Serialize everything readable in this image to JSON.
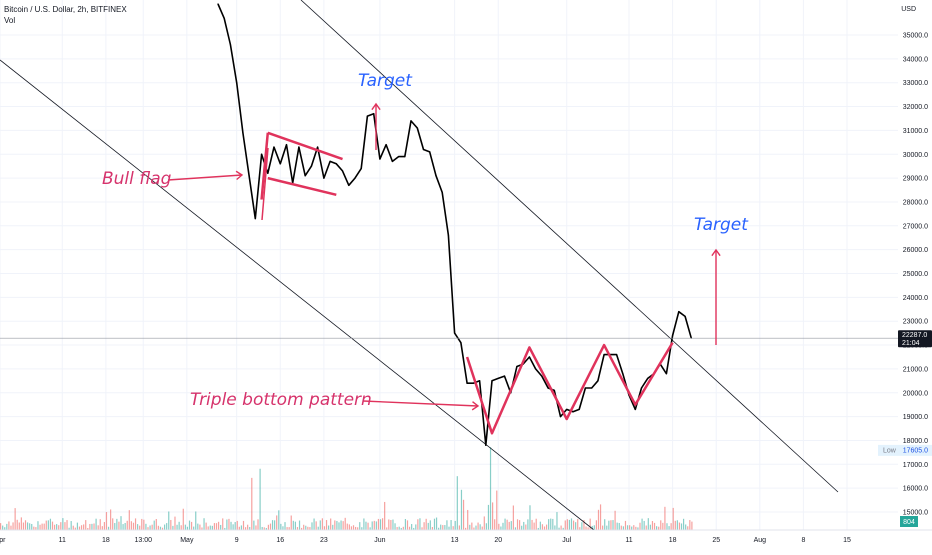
{
  "header": {
    "symbol_line": "Bitcoin / U.S. Dollar, 2h, BITFINEX",
    "vol_label": "Vol"
  },
  "colors": {
    "price_line": "#000000",
    "pattern": "#e0335c",
    "arrow": "#e0335c",
    "target_text": "#2962ff",
    "label_text": "#d6336c",
    "grid": "#f0f3fa",
    "vol_up": "#26a69a",
    "vol_down": "#ef5350",
    "price_tag_bg": "#131722"
  },
  "chart_data": {
    "type": "line",
    "y_axis": {
      "unit": "USD",
      "ticks": [
        "35000.0",
        "34000.0",
        "33000.0",
        "32000.0",
        "31000.0",
        "30000.0",
        "29000.0",
        "28000.0",
        "27000.0",
        "26000.0",
        "25000.0",
        "24000.0",
        "23000.0",
        "22000.0",
        "21000.0",
        "20000.0",
        "19000.0",
        "18000.0",
        "17000.0",
        "16000.0",
        "15000.0"
      ],
      "ylim": [
        14600,
        36300
      ]
    },
    "x_axis": {
      "ticks": [
        {
          "label": "Apr",
          "date": "2022-04-01"
        },
        {
          "label": "11",
          "date": "2022-04-11"
        },
        {
          "label": "18",
          "date": "2022-04-18"
        },
        {
          "label": "13:00",
          "date": "2022-04-24"
        },
        {
          "label": "May",
          "date": "2022-05-01"
        },
        {
          "label": "9",
          "date": "2022-05-09"
        },
        {
          "label": "16",
          "date": "2022-05-16"
        },
        {
          "label": "23",
          "date": "2022-05-23"
        },
        {
          "label": "Jun",
          "date": "2022-06-01"
        },
        {
          "label": "13",
          "date": "2022-06-13"
        },
        {
          "label": "20",
          "date": "2022-06-20"
        },
        {
          "label": "Jul",
          "date": "2022-07-01"
        },
        {
          "label": "11",
          "date": "2022-07-11"
        },
        {
          "label": "18",
          "date": "2022-07-18"
        },
        {
          "label": "25",
          "date": "2022-07-25"
        },
        {
          "label": "Aug",
          "date": "2022-08-01"
        },
        {
          "label": "8",
          "date": "2022-08-08"
        },
        {
          "label": "15",
          "date": "2022-08-15"
        }
      ]
    },
    "series": [
      {
        "points": [
          [
            "2022-05-06",
            36300
          ],
          [
            "2022-05-07",
            35700
          ],
          [
            "2022-05-08",
            34600
          ],
          [
            "2022-05-09",
            33000
          ],
          [
            "2022-05-10",
            30900
          ],
          [
            "2022-05-11",
            29100
          ],
          [
            "2022-05-12",
            27300
          ],
          [
            "2022-05-13",
            30000
          ],
          [
            "2022-05-14",
            29200
          ],
          [
            "2022-05-15",
            30300
          ],
          [
            "2022-05-16",
            29600
          ],
          [
            "2022-05-17",
            30400
          ],
          [
            "2022-05-18",
            28800
          ],
          [
            "2022-05-19",
            30300
          ],
          [
            "2022-05-20",
            29100
          ],
          [
            "2022-05-21",
            29500
          ],
          [
            "2022-05-22",
            30300
          ],
          [
            "2022-05-23",
            29000
          ],
          [
            "2022-05-24",
            29700
          ],
          [
            "2022-05-25",
            29600
          ],
          [
            "2022-05-26",
            29300
          ],
          [
            "2022-05-27",
            28700
          ],
          [
            "2022-05-28",
            29000
          ],
          [
            "2022-05-29",
            29400
          ],
          [
            "2022-05-30",
            31600
          ],
          [
            "2022-05-31",
            31700
          ],
          [
            "2022-06-01",
            29800
          ],
          [
            "2022-06-02",
            30400
          ],
          [
            "2022-06-03",
            29700
          ],
          [
            "2022-06-04",
            29900
          ],
          [
            "2022-06-05",
            29900
          ],
          [
            "2022-06-06",
            31400
          ],
          [
            "2022-06-07",
            31100
          ],
          [
            "2022-06-08",
            30200
          ],
          [
            "2022-06-09",
            30100
          ],
          [
            "2022-06-10",
            29100
          ],
          [
            "2022-06-11",
            28400
          ],
          [
            "2022-06-12",
            26600
          ],
          [
            "2022-06-13",
            22500
          ],
          [
            "2022-06-14",
            22100
          ],
          [
            "2022-06-15",
            20400
          ],
          [
            "2022-06-16",
            20400
          ],
          [
            "2022-06-17",
            20500
          ],
          [
            "2022-06-18",
            17800
          ],
          [
            "2022-06-19",
            20500
          ],
          [
            "2022-06-20",
            20600
          ],
          [
            "2022-06-21",
            20700
          ],
          [
            "2022-06-22",
            20000
          ],
          [
            "2022-06-23",
            21100
          ],
          [
            "2022-06-24",
            21200
          ],
          [
            "2022-06-25",
            21500
          ],
          [
            "2022-06-26",
            21000
          ],
          [
            "2022-06-27",
            20700
          ],
          [
            "2022-06-28",
            20200
          ],
          [
            "2022-06-29",
            20100
          ],
          [
            "2022-06-30",
            19000
          ],
          [
            "2022-07-01",
            19300
          ],
          [
            "2022-07-02",
            19200
          ],
          [
            "2022-07-03",
            19300
          ],
          [
            "2022-07-04",
            20200
          ],
          [
            "2022-07-05",
            20200
          ],
          [
            "2022-07-06",
            20500
          ],
          [
            "2022-07-07",
            21600
          ],
          [
            "2022-07-08",
            21600
          ],
          [
            "2022-07-09",
            21600
          ],
          [
            "2022-07-10",
            20800
          ],
          [
            "2022-07-11",
            19900
          ],
          [
            "2022-07-12",
            19300
          ],
          [
            "2022-07-13",
            20200
          ],
          [
            "2022-07-14",
            20600
          ],
          [
            "2022-07-15",
            20800
          ],
          [
            "2022-07-16",
            21200
          ],
          [
            "2022-07-17",
            20800
          ],
          [
            "2022-07-18",
            22400
          ],
          [
            "2022-07-19",
            23400
          ],
          [
            "2022-07-20",
            23200
          ],
          [
            "2022-07-21",
            22287
          ]
        ]
      }
    ],
    "last_price": {
      "value": "22287.0",
      "timer": "21:04"
    },
    "low_tag": {
      "label": "Low",
      "value": "17605.0"
    },
    "volume_tag": "804",
    "annotations": {
      "bull_flag": "Bull flag",
      "target_1": "Target",
      "target_2": "Target",
      "triple_bottom": "Triple bottom pattern"
    },
    "grid": true
  }
}
